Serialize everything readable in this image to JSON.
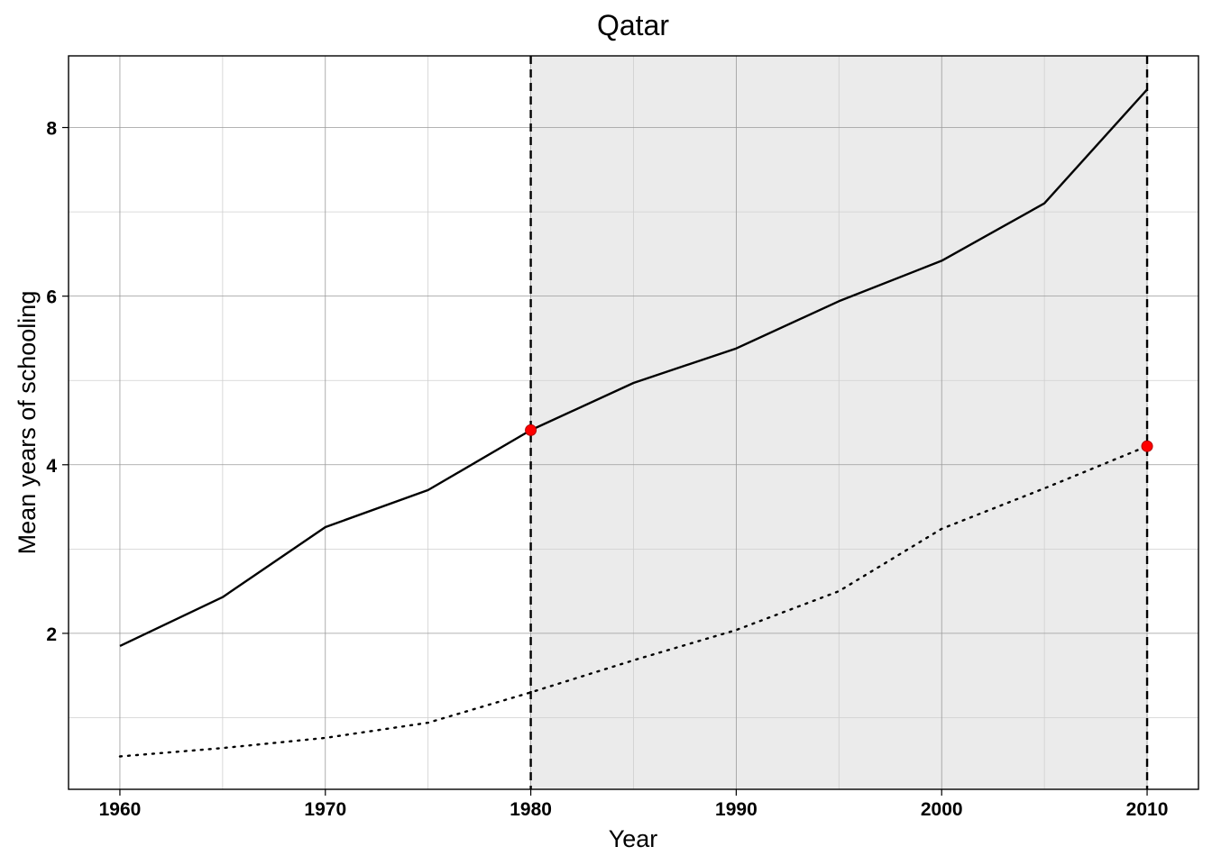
{
  "chart_data": {
    "type": "line",
    "title": "Qatar",
    "xlabel": "Year",
    "ylabel": "Mean years of schooling",
    "xlim": [
      1957.5,
      2012.5
    ],
    "ylim": [
      0.15,
      8.85
    ],
    "x_ticks": [
      1960,
      1970,
      1980,
      1990,
      2000,
      2010
    ],
    "x_minor_ticks": [
      1965,
      1975,
      1985,
      1995,
      2005
    ],
    "y_ticks": [
      2,
      4,
      6,
      8
    ],
    "y_minor_ticks": [
      1,
      3,
      5,
      7
    ],
    "grid": true,
    "shaded_region": {
      "x_start": 1980,
      "x_end": 2010,
      "color": "#ebebeb"
    },
    "vertical_lines": [
      {
        "x": 1980,
        "style": "dashed"
      },
      {
        "x": 2010,
        "style": "dashed"
      }
    ],
    "series": [
      {
        "style": "solid",
        "color": "#000000",
        "x": [
          1960,
          1965,
          1970,
          1975,
          1980,
          1985,
          1990,
          1995,
          2000,
          2005,
          2010
        ],
        "y": [
          1.85,
          2.43,
          3.26,
          3.7,
          4.41,
          4.97,
          5.38,
          5.94,
          6.42,
          7.1,
          8.45
        ]
      },
      {
        "style": "dotted",
        "color": "#000000",
        "x": [
          1960,
          1965,
          1970,
          1975,
          1980,
          1985,
          1990,
          1995,
          2000,
          2005,
          2010
        ],
        "y": [
          0.54,
          0.64,
          0.76,
          0.94,
          1.3,
          1.68,
          2.04,
          2.5,
          3.24,
          3.72,
          4.22
        ]
      }
    ],
    "highlight_points": [
      {
        "x": 1980,
        "y": 4.41,
        "color": "#ff0000"
      },
      {
        "x": 2010,
        "y": 4.22,
        "color": "#ff0000"
      }
    ]
  }
}
